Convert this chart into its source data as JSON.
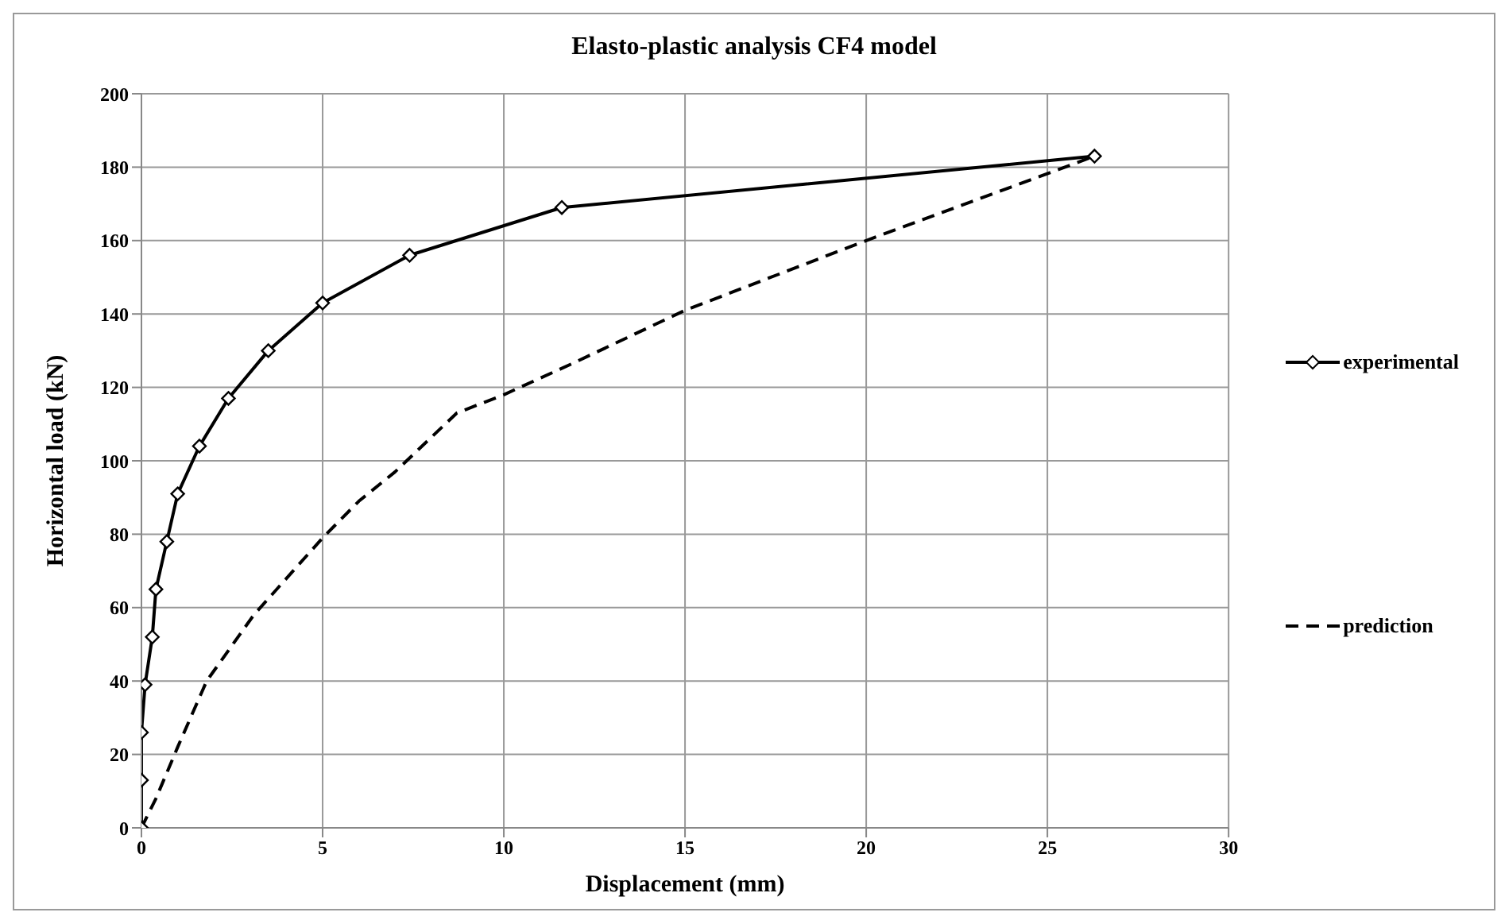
{
  "chart_data": {
    "type": "line",
    "title": "Elasto-plastic analysis CF4 model",
    "xlabel": "Displacement (mm)",
    "ylabel": "Horizontal load (kN)",
    "xlim": [
      0,
      30
    ],
    "xticks": [
      0,
      5,
      10,
      15,
      20,
      25,
      30
    ],
    "ylim": [
      0,
      200
    ],
    "yticks": [
      0,
      20,
      40,
      60,
      80,
      100,
      120,
      140,
      160,
      180,
      200
    ],
    "grid": true,
    "legend": "right",
    "series": [
      {
        "name": "experimental",
        "color": "#000000",
        "marker": "diamond",
        "line_style": "solid",
        "x": [
          0,
          0,
          0,
          0.1,
          0.3,
          0.4,
          0.7,
          1.0,
          1.6,
          2.4,
          3.5,
          5,
          7.4,
          11.6,
          26.3
        ],
        "values": [
          0,
          13,
          26,
          39,
          52,
          65,
          78,
          91,
          104,
          117,
          130,
          143,
          156,
          169,
          183
        ]
      },
      {
        "name": "prediction",
        "color": "#000000",
        "marker": "none",
        "line_style": "dashed",
        "x": [
          0,
          0.4,
          1,
          1.8,
          3.1,
          5,
          6,
          7,
          8.7,
          10,
          12,
          15,
          20,
          26.3
        ],
        "values": [
          0,
          8,
          22,
          40,
          58,
          79,
          89,
          97,
          113,
          118,
          127,
          141,
          160,
          183
        ]
      }
    ]
  }
}
